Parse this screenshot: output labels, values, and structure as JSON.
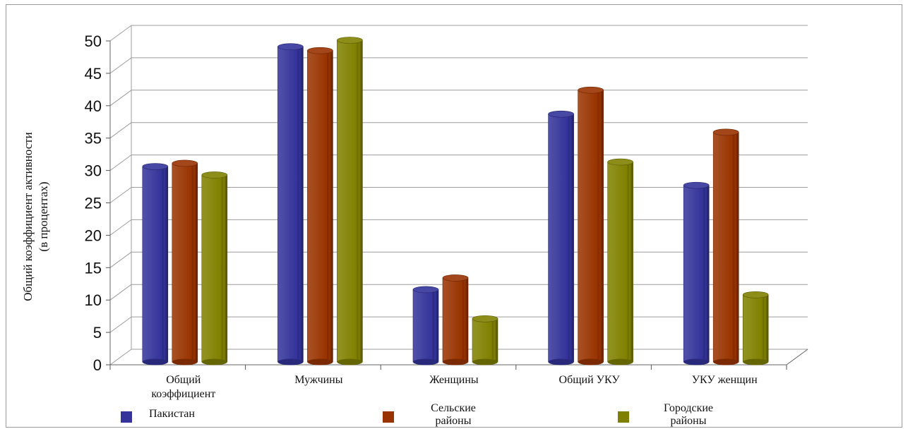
{
  "chart_data": {
    "type": "bar",
    "ylabel_lines": [
      "Общий коэффициент активности",
      "(в процентах)"
    ],
    "ylim": [
      0,
      50
    ],
    "yticks": [
      "0",
      "5",
      "10",
      "15",
      "20",
      "25",
      "30",
      "35",
      "40",
      "45",
      "50"
    ],
    "grid": true,
    "legend_position": "bottom",
    "categories": [
      [
        "Общий",
        "коэффициент"
      ],
      [
        "Мужчины"
      ],
      [
        "Женщины"
      ],
      [
        "Общий УКУ"
      ],
      [
        "УКУ женщин"
      ]
    ],
    "series": [
      {
        "name": "Пакистан",
        "name_lines": [
          "Пакистан"
        ],
        "color": "#33339a",
        "values": [
          30.5,
          49,
          11.5,
          38.6,
          27.6
        ]
      },
      {
        "name": "Сельские районы",
        "name_lines": [
          "Сельские",
          "районы"
        ],
        "color": "#993300",
        "values": [
          31,
          48.4,
          13.3,
          42.3,
          35.8
        ]
      },
      {
        "name": "Городские районы",
        "name_lines": [
          "Городские",
          "районы"
        ],
        "color": "#808000",
        "values": [
          29.2,
          50,
          7,
          31.2,
          10.7
        ]
      }
    ]
  }
}
